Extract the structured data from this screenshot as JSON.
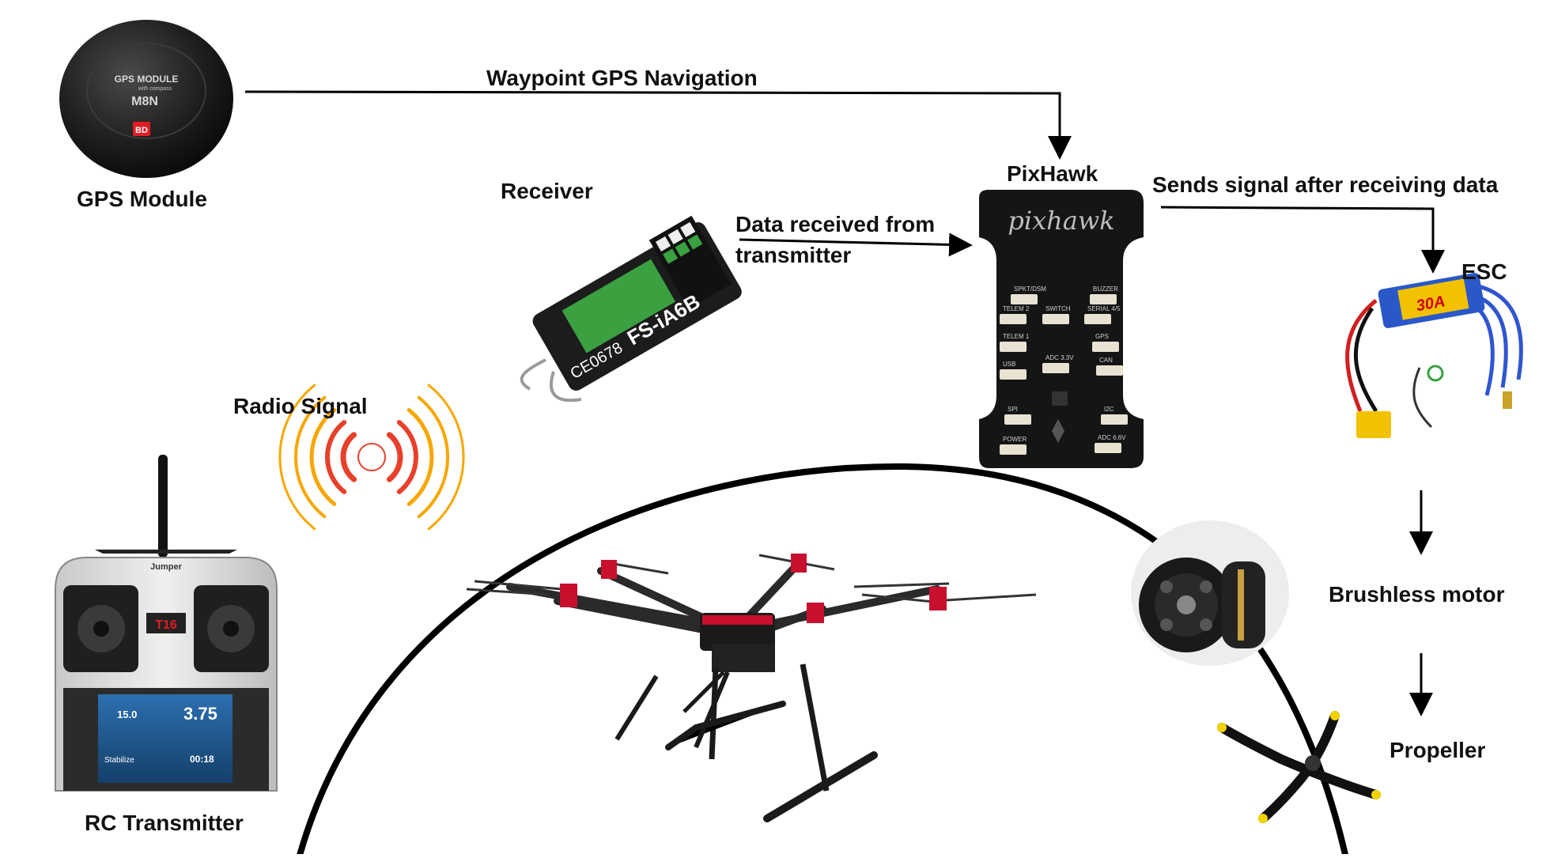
{
  "labels": {
    "gps_module": "GPS Module",
    "receiver": "Receiver",
    "pixhawk": "PixHawk",
    "esc": "ESC",
    "brushless_motor": "Brushless motor",
    "propeller": "Propeller",
    "rc_transmitter": "RC Transmitter",
    "radio_signal": "Radio Signal"
  },
  "edges": {
    "gps_to_pixhawk": "Waypoint GPS Navigation",
    "receiver_to_pixhawk_line1": "Data received from",
    "receiver_to_pixhawk_line2": "transmitter",
    "pixhawk_to_esc": "Sends signal after receiving data"
  },
  "device_text": {
    "gps_top": "GPS MODULE",
    "gps_sub": "with compass",
    "gps_model": "M8N",
    "gps_badge": "BD",
    "receiver_model": "FS-iA6B",
    "receiver_ce": "CE0678",
    "pixhawk_logo": "pixhawk",
    "esc_rating": "30A",
    "transmitter_brand": "Jumper",
    "transmitter_model": "T16",
    "transmitter_readout_1": "15.0",
    "transmitter_readout_2": "3.75",
    "transmitter_readout_3": "00:18",
    "transmitter_mode": "Stabilize"
  },
  "pixhawk_ports": [
    "SPKT/DSM",
    "BUZZER",
    "TELEM 2",
    "SWITCH",
    "SERIAL 4/5",
    "TELEM 1",
    "GPS",
    "USB",
    "ADC 3.3V",
    "CAN",
    "SPI",
    "I2C",
    "POWER",
    "ADC 6.6V"
  ],
  "colors": {
    "arrow": "#000000",
    "radio_outer": "#f7a700",
    "radio_inner": "#e8402a",
    "frame_red": "#c8102e",
    "receiver_green": "#3aa040"
  }
}
